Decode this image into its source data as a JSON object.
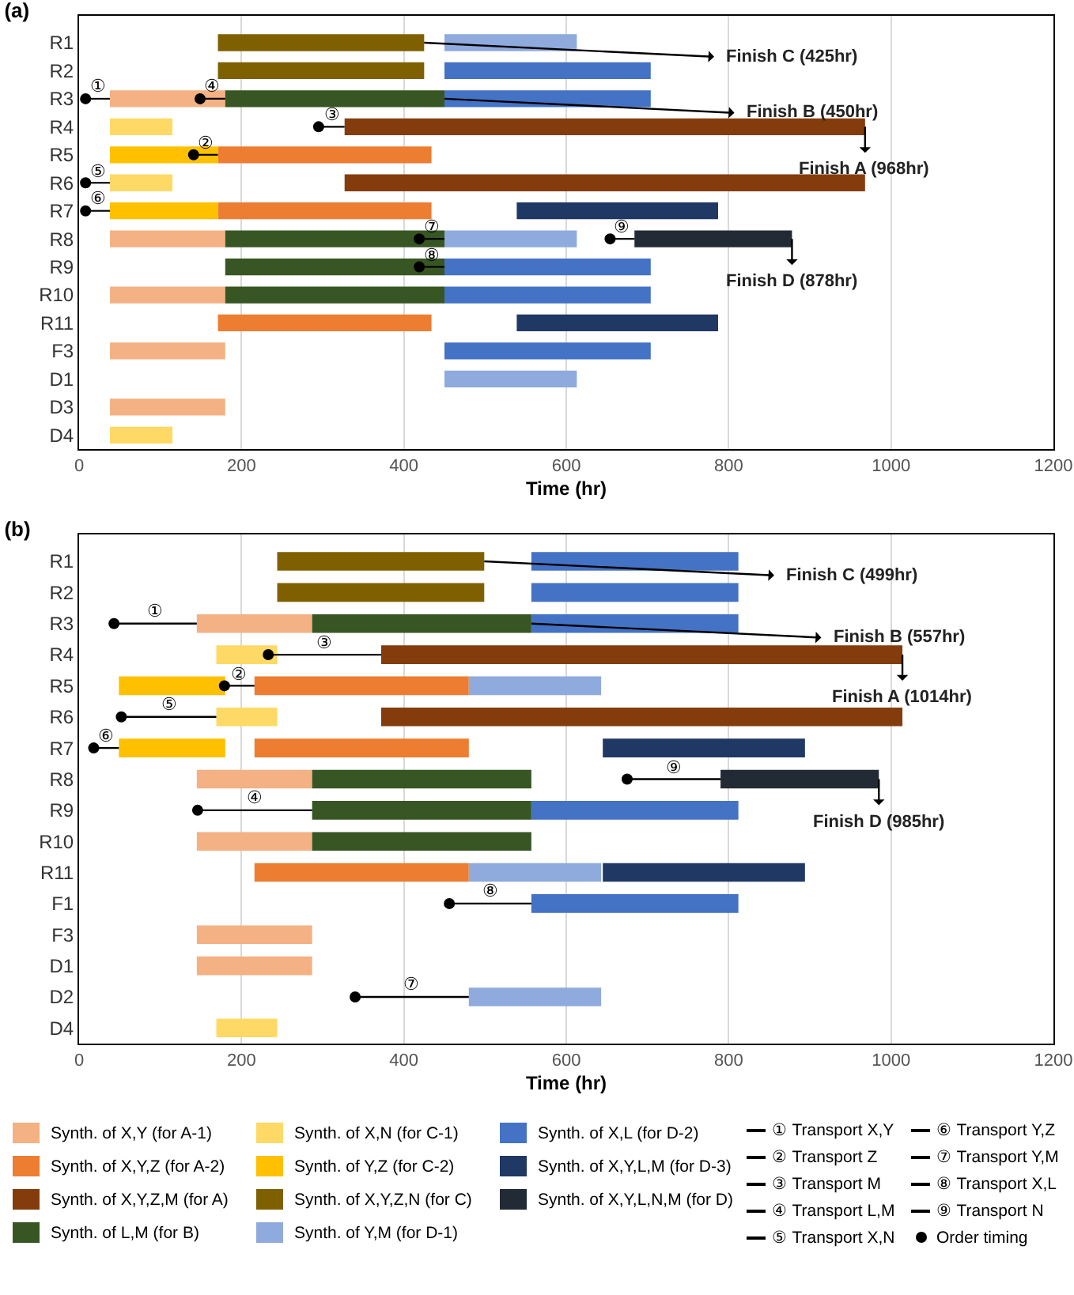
{
  "chart_data": [
    {
      "type": "bar",
      "title": "(a)",
      "orientation": "horizontal",
      "xlabel": "Time (hr)",
      "xlim": [
        0,
        1200
      ],
      "xticks": [
        0,
        200,
        400,
        600,
        800,
        1000,
        1200
      ],
      "grid": "x",
      "categories": [
        "R1",
        "R2",
        "R3",
        "R4",
        "R5",
        "R6",
        "R7",
        "R8",
        "R9",
        "R10",
        "R11",
        "F3",
        "D1",
        "D3",
        "D4"
      ],
      "series": [
        {
          "color": "#f4b183",
          "values": [
            null,
            null,
            142,
            null,
            null,
            null,
            null,
            142,
            null,
            142,
            null,
            142,
            null,
            142,
            null
          ],
          "base": [
            null,
            null,
            38,
            null,
            null,
            null,
            null,
            38,
            null,
            38,
            null,
            38,
            null,
            38,
            null
          ]
        },
        {
          "color": "#ed7d31",
          "values": [
            null,
            null,
            null,
            null,
            263,
            null,
            263,
            null,
            null,
            null,
            263,
            null,
            null,
            null,
            null
          ],
          "base": [
            null,
            null,
            null,
            null,
            171,
            null,
            171,
            null,
            null,
            null,
            171,
            null,
            null,
            null,
            null
          ]
        },
        {
          "color": "#843c0c",
          "values": [
            null,
            null,
            null,
            641,
            null,
            641,
            null,
            null,
            null,
            null,
            null,
            null,
            null,
            null,
            null
          ],
          "base": [
            null,
            null,
            null,
            327,
            null,
            327,
            null,
            null,
            null,
            null,
            null,
            null,
            null,
            null,
            null
          ]
        },
        {
          "color": "#375623",
          "values": [
            null,
            null,
            270,
            null,
            null,
            null,
            null,
            270,
            270,
            270,
            null,
            null,
            null,
            null,
            null
          ],
          "base": [
            null,
            null,
            180,
            null,
            null,
            null,
            null,
            180,
            180,
            180,
            null,
            null,
            null,
            null,
            null
          ]
        },
        {
          "color": "#ffd966",
          "values": [
            null,
            null,
            null,
            77,
            null,
            77,
            null,
            null,
            null,
            null,
            null,
            null,
            null,
            null,
            77
          ],
          "base": [
            null,
            null,
            null,
            38,
            null,
            38,
            null,
            null,
            null,
            null,
            null,
            null,
            null,
            null,
            38
          ]
        },
        {
          "color": "#ffc000",
          "values": [
            null,
            null,
            null,
            null,
            133,
            null,
            133,
            null,
            null,
            null,
            null,
            null,
            null,
            null,
            null
          ],
          "base": [
            null,
            null,
            null,
            null,
            38,
            null,
            38,
            null,
            null,
            null,
            null,
            null,
            null,
            null,
            null
          ]
        },
        {
          "color": "#7f6000",
          "values": [
            254,
            254,
            null,
            null,
            null,
            null,
            null,
            null,
            null,
            null,
            null,
            null,
            null,
            null,
            null
          ],
          "base": [
            171,
            171,
            null,
            null,
            null,
            null,
            null,
            null,
            null,
            null,
            null,
            null,
            null,
            null,
            null
          ]
        },
        {
          "color": "#8faadc",
          "values": [
            163,
            null,
            null,
            null,
            null,
            null,
            null,
            163,
            null,
            null,
            null,
            null,
            163,
            null,
            null
          ],
          "base": [
            450,
            null,
            null,
            null,
            null,
            null,
            null,
            450,
            null,
            null,
            null,
            null,
            450,
            null,
            null
          ]
        },
        {
          "color": "#4472c4",
          "values": [
            null,
            254,
            254,
            null,
            null,
            null,
            null,
            null,
            254,
            254,
            null,
            254,
            null,
            null,
            null
          ],
          "base": [
            null,
            450,
            450,
            null,
            null,
            null,
            null,
            null,
            450,
            450,
            null,
            450,
            null,
            null,
            null
          ]
        },
        {
          "color": "#1f3864",
          "values": [
            null,
            null,
            null,
            null,
            null,
            null,
            248,
            null,
            null,
            null,
            248,
            null,
            null,
            null,
            null
          ],
          "base": [
            null,
            null,
            null,
            null,
            null,
            null,
            539,
            null,
            null,
            null,
            539,
            null,
            null,
            null,
            null
          ]
        },
        {
          "color": "#222a35",
          "values": [
            null,
            null,
            null,
            null,
            null,
            null,
            null,
            194,
            null,
            null,
            null,
            null,
            null,
            null,
            null
          ],
          "base": [
            null,
            null,
            null,
            null,
            null,
            null,
            null,
            684,
            null,
            null,
            null,
            null,
            null,
            null,
            null
          ]
        },
        {
          "color": "#000000",
          "values": [
            null,
            null,
            30,
            null,
            null,
            null,
            null,
            null,
            null,
            null,
            null,
            null,
            null,
            null,
            null
          ],
          "base": [
            null,
            null,
            8,
            null,
            null,
            null,
            null,
            null,
            null,
            null,
            null,
            null,
            null,
            null,
            null
          ],
          "value_labels": [
            null,
            null,
            "①",
            null,
            null,
            null,
            null,
            null,
            null,
            null,
            null,
            null,
            null,
            null,
            null
          ]
        },
        {
          "color": "#000000",
          "values": [
            null,
            null,
            null,
            null,
            30,
            null,
            null,
            null,
            null,
            null,
            null,
            null,
            null,
            null,
            null
          ],
          "base": [
            null,
            null,
            null,
            null,
            141,
            null,
            null,
            null,
            null,
            null,
            null,
            null,
            null,
            null,
            null
          ],
          "value_labels": [
            null,
            null,
            null,
            null,
            "②",
            null,
            null,
            null,
            null,
            null,
            null,
            null,
            null,
            null,
            null
          ]
        },
        {
          "color": "#000000",
          "values": [
            null,
            null,
            null,
            32,
            null,
            null,
            null,
            null,
            null,
            null,
            null,
            null,
            null,
            null,
            null
          ],
          "base": [
            null,
            null,
            null,
            295,
            null,
            null,
            null,
            null,
            null,
            null,
            null,
            null,
            null,
            null,
            null
          ],
          "value_labels": [
            null,
            null,
            null,
            "③",
            null,
            null,
            null,
            null,
            null,
            null,
            null,
            null,
            null,
            null,
            null
          ]
        },
        {
          "color": "#000000",
          "values": [
            null,
            null,
            31,
            null,
            null,
            null,
            null,
            null,
            null,
            null,
            null,
            null,
            null,
            null,
            null
          ],
          "base": [
            null,
            null,
            149,
            null,
            null,
            null,
            null,
            null,
            null,
            null,
            null,
            null,
            null,
            null,
            null
          ],
          "value_labels": [
            null,
            null,
            "④",
            null,
            null,
            null,
            null,
            null,
            null,
            null,
            null,
            null,
            null,
            null,
            null
          ]
        },
        {
          "color": "#000000",
          "values": [
            null,
            null,
            null,
            null,
            null,
            30,
            null,
            null,
            null,
            null,
            null,
            null,
            null,
            null,
            null
          ],
          "base": [
            null,
            null,
            null,
            null,
            null,
            8,
            null,
            null,
            null,
            null,
            null,
            null,
            null,
            null,
            null
          ],
          "value_labels": [
            null,
            null,
            null,
            null,
            null,
            "⑤",
            null,
            null,
            null,
            null,
            null,
            null,
            null,
            null,
            null
          ]
        },
        {
          "color": "#000000",
          "values": [
            null,
            null,
            null,
            null,
            null,
            null,
            30,
            null,
            null,
            null,
            null,
            null,
            null,
            null,
            null
          ],
          "base": [
            null,
            null,
            null,
            null,
            null,
            null,
            8,
            null,
            null,
            null,
            null,
            null,
            null,
            null,
            null
          ],
          "value_labels": [
            null,
            null,
            null,
            null,
            null,
            null,
            "⑥",
            null,
            null,
            null,
            null,
            null,
            null,
            null,
            null
          ]
        },
        {
          "color": "#000000",
          "values": [
            null,
            null,
            null,
            null,
            null,
            null,
            null,
            31,
            null,
            null,
            null,
            null,
            null,
            null,
            null
          ],
          "base": [
            null,
            null,
            null,
            null,
            null,
            null,
            null,
            419,
            null,
            null,
            null,
            null,
            null,
            null,
            null
          ],
          "value_labels": [
            null,
            null,
            null,
            null,
            null,
            null,
            null,
            "⑦",
            null,
            null,
            null,
            null,
            null,
            null,
            null
          ]
        },
        {
          "color": "#000000",
          "values": [
            null,
            null,
            null,
            null,
            null,
            null,
            null,
            null,
            31,
            null,
            null,
            null,
            null,
            null,
            null
          ],
          "base": [
            null,
            null,
            null,
            null,
            null,
            null,
            null,
            null,
            419,
            null,
            null,
            null,
            null,
            null,
            null
          ],
          "value_labels": [
            null,
            null,
            null,
            null,
            null,
            null,
            null,
            null,
            "⑧",
            null,
            null,
            null,
            null,
            null,
            null
          ]
        },
        {
          "color": "#000000",
          "values": [
            null,
            null,
            null,
            null,
            null,
            null,
            null,
            30,
            null,
            null,
            null,
            null,
            null,
            null,
            null
          ],
          "base": [
            null,
            null,
            null,
            null,
            null,
            null,
            null,
            654,
            null,
            null,
            null,
            null,
            null,
            null,
            null
          ],
          "value_labels": [
            null,
            null,
            null,
            null,
            null,
            null,
            null,
            "⑨",
            null,
            null,
            null,
            null,
            null,
            null,
            null
          ]
        },
        {
          "color": "#000000",
          "type": "scatter",
          "marker": "circle",
          "x": [
            "R3",
            "R3",
            "R4",
            "R5",
            "R6",
            "R7",
            "R8",
            "R8",
            "R9"
          ],
          "values": [
            8,
            149,
            295,
            141,
            8,
            8,
            419,
            654,
            419
          ]
        }
      ],
      "annotations": [
        {
          "text": "Finish C (425hr)",
          "x": 425,
          "y": "R1"
        },
        {
          "text": "Finish B (450hr)",
          "x": 450,
          "y": "R3"
        },
        {
          "text": "Finish A (968hr)",
          "x": 968,
          "y": "R4"
        },
        {
          "text": "Finish D (878hr)",
          "x": 878,
          "y": "R8"
        }
      ]
    },
    {
      "type": "bar",
      "title": "(b)",
      "orientation": "horizontal",
      "xlabel": "Time (hr)",
      "xlim": [
        0,
        1200
      ],
      "xticks": [
        0,
        200,
        400,
        600,
        800,
        1000,
        1200
      ],
      "grid": "x",
      "legend": "bottom",
      "categories": [
        "R1",
        "R2",
        "R3",
        "R4",
        "R5",
        "R6",
        "R7",
        "R8",
        "R9",
        "R10",
        "R11",
        "F1",
        "F3",
        "D1",
        "D2",
        "D4"
      ],
      "series": [
        {
          "name": "Synth. of X,Y (for A-1)",
          "color": "#f4b183",
          "values": [
            null,
            null,
            142,
            null,
            null,
            null,
            null,
            142,
            null,
            142,
            null,
            null,
            142,
            142,
            null,
            null
          ],
          "base": [
            null,
            null,
            145,
            null,
            null,
            null,
            null,
            145,
            null,
            145,
            null,
            null,
            145,
            145,
            null,
            null
          ]
        },
        {
          "name": "Synth. of X,Y,Z (for A-2)",
          "color": "#ed7d31",
          "values": [
            null,
            null,
            null,
            null,
            264,
            null,
            264,
            null,
            null,
            null,
            264,
            null,
            null,
            null,
            null,
            null
          ],
          "base": [
            null,
            null,
            null,
            null,
            216,
            null,
            216,
            null,
            null,
            null,
            216,
            null,
            null,
            null,
            null,
            null
          ]
        },
        {
          "name": "Synth. of X,Y,Z,M (for A)",
          "color": "#843c0c",
          "values": [
            null,
            null,
            null,
            642,
            null,
            642,
            null,
            null,
            null,
            null,
            null,
            null,
            null,
            null,
            null,
            null
          ],
          "base": [
            null,
            null,
            null,
            372,
            null,
            372,
            null,
            null,
            null,
            null,
            null,
            null,
            null,
            null,
            null,
            null
          ]
        },
        {
          "name": "Synth. of L,M (for B)",
          "color": "#375623",
          "values": [
            null,
            null,
            270,
            null,
            null,
            null,
            null,
            270,
            270,
            270,
            null,
            null,
            null,
            null,
            null,
            null
          ],
          "base": [
            null,
            null,
            287,
            null,
            null,
            null,
            null,
            287,
            287,
            287,
            null,
            null,
            null,
            null,
            null,
            null
          ]
        },
        {
          "name": "Synth. of X,N (for C-1)",
          "color": "#ffd966",
          "values": [
            null,
            null,
            null,
            75,
            null,
            75,
            null,
            null,
            null,
            null,
            null,
            null,
            null,
            null,
            null,
            75
          ],
          "base": [
            null,
            null,
            null,
            169,
            null,
            169,
            null,
            null,
            null,
            null,
            null,
            null,
            null,
            null,
            null,
            169
          ]
        },
        {
          "name": "Synth. of Y,Z (for C-2)",
          "color": "#ffc000",
          "values": [
            null,
            null,
            null,
            null,
            131,
            null,
            131,
            null,
            null,
            null,
            null,
            null,
            null,
            null,
            null,
            null
          ],
          "base": [
            null,
            null,
            null,
            null,
            49,
            null,
            49,
            null,
            null,
            null,
            null,
            null,
            null,
            null,
            null,
            null
          ]
        },
        {
          "name": "Synth. of X,Y,Z,N (for C)",
          "color": "#7f6000",
          "values": [
            255,
            255,
            null,
            null,
            null,
            null,
            null,
            null,
            null,
            null,
            null,
            null,
            null,
            null,
            null,
            null
          ],
          "base": [
            244,
            244,
            null,
            null,
            null,
            null,
            null,
            null,
            null,
            null,
            null,
            null,
            null,
            null,
            null,
            null
          ]
        },
        {
          "name": "Synth. of Y,M (for D-1)",
          "color": "#8faadc",
          "values": [
            null,
            null,
            null,
            null,
            163,
            null,
            null,
            null,
            null,
            null,
            163,
            null,
            null,
            null,
            163,
            null
          ],
          "base": [
            null,
            null,
            null,
            null,
            480,
            null,
            null,
            null,
            null,
            null,
            480,
            null,
            null,
            null,
            480,
            null
          ]
        },
        {
          "name": "Synth. of X,L (for D-2)",
          "color": "#4472c4",
          "values": [
            255,
            255,
            255,
            null,
            null,
            null,
            null,
            null,
            255,
            null,
            null,
            255,
            null,
            null,
            null,
            null
          ],
          "base": [
            557,
            557,
            557,
            null,
            null,
            null,
            null,
            null,
            557,
            null,
            null,
            557,
            null,
            null,
            null,
            null
          ]
        },
        {
          "name": "Synth. of X,Y,L,M (for D-3)",
          "color": "#1f3864",
          "values": [
            null,
            null,
            null,
            null,
            null,
            null,
            249,
            null,
            null,
            null,
            249,
            null,
            null,
            null,
            null,
            null
          ],
          "base": [
            null,
            null,
            null,
            null,
            null,
            null,
            645,
            null,
            null,
            null,
            645,
            null,
            null,
            null,
            null,
            null
          ]
        },
        {
          "name": "Synth. of X,Y,L,N,M (for D)",
          "color": "#222a35",
          "values": [
            null,
            null,
            null,
            null,
            null,
            null,
            null,
            195,
            null,
            null,
            null,
            null,
            null,
            null,
            null,
            null
          ],
          "base": [
            null,
            null,
            null,
            null,
            null,
            null,
            null,
            790,
            null,
            null,
            null,
            null,
            null,
            null,
            null,
            null
          ]
        },
        {
          "name": "① Transport X,Y",
          "color": "#000000",
          "values": [
            null,
            null,
            102,
            null,
            null,
            null,
            null,
            null,
            null,
            null,
            null,
            null,
            null,
            null,
            null,
            null
          ],
          "base": [
            null,
            null,
            43,
            null,
            null,
            null,
            null,
            null,
            null,
            null,
            null,
            null,
            null,
            null,
            null,
            null
          ],
          "value_labels": [
            null,
            null,
            "①",
            null,
            null,
            null,
            null,
            null,
            null,
            null,
            null,
            null,
            null,
            null,
            null,
            null
          ]
        },
        {
          "name": "② Transport Z",
          "color": "#000000",
          "values": [
            null,
            null,
            null,
            null,
            37,
            null,
            null,
            null,
            null,
            null,
            null,
            null,
            null,
            null,
            null,
            null
          ],
          "base": [
            null,
            null,
            null,
            null,
            179,
            null,
            null,
            null,
            null,
            null,
            null,
            null,
            null,
            null,
            null,
            null
          ],
          "value_labels": [
            null,
            null,
            null,
            null,
            "②",
            null,
            null,
            null,
            null,
            null,
            null,
            null,
            null,
            null,
            null,
            null
          ]
        },
        {
          "name": "③ Transport M",
          "color": "#000000",
          "values": [
            null,
            null,
            null,
            139,
            null,
            null,
            null,
            null,
            null,
            null,
            null,
            null,
            null,
            null,
            null,
            null
          ],
          "base": [
            null,
            null,
            null,
            233,
            null,
            null,
            null,
            null,
            null,
            null,
            null,
            null,
            null,
            null,
            null,
            null
          ],
          "value_labels": [
            null,
            null,
            null,
            "③",
            null,
            null,
            null,
            null,
            null,
            null,
            null,
            null,
            null,
            null,
            null,
            null
          ]
        },
        {
          "name": "④ Transport L,M",
          "color": "#000000",
          "values": [
            null,
            null,
            null,
            null,
            null,
            null,
            null,
            null,
            141,
            null,
            null,
            null,
            null,
            null,
            null,
            null
          ],
          "base": [
            null,
            null,
            null,
            null,
            null,
            null,
            null,
            null,
            146,
            null,
            null,
            null,
            null,
            null,
            null,
            null
          ],
          "value_labels": [
            null,
            null,
            null,
            null,
            null,
            null,
            null,
            null,
            "④",
            null,
            null,
            null,
            null,
            null,
            null,
            null
          ]
        },
        {
          "name": "⑤ Transport X,N",
          "color": "#000000",
          "values": [
            null,
            null,
            null,
            null,
            null,
            117,
            null,
            null,
            null,
            null,
            null,
            null,
            null,
            null,
            null,
            null
          ],
          "base": [
            null,
            null,
            null,
            null,
            null,
            52,
            null,
            null,
            null,
            null,
            null,
            null,
            null,
            null,
            null,
            null
          ],
          "value_labels": [
            null,
            null,
            null,
            null,
            null,
            "⑤",
            null,
            null,
            null,
            null,
            null,
            null,
            null,
            null,
            null,
            null
          ]
        },
        {
          "name": "⑥ Transport Y,Z",
          "color": "#000000",
          "values": [
            null,
            null,
            null,
            null,
            null,
            null,
            31,
            null,
            null,
            null,
            null,
            null,
            null,
            null,
            null,
            null
          ],
          "base": [
            null,
            null,
            null,
            null,
            null,
            null,
            18,
            null,
            null,
            null,
            null,
            null,
            null,
            null,
            null,
            null
          ],
          "value_labels": [
            null,
            null,
            null,
            null,
            null,
            null,
            "⑥",
            null,
            null,
            null,
            null,
            null,
            null,
            null,
            null,
            null
          ]
        },
        {
          "name": "⑦ Transport Y,M",
          "color": "#000000",
          "values": [
            null,
            null,
            null,
            null,
            null,
            null,
            null,
            null,
            null,
            null,
            null,
            null,
            null,
            null,
            140,
            null
          ],
          "base": [
            null,
            null,
            null,
            null,
            null,
            null,
            null,
            null,
            null,
            null,
            null,
            null,
            null,
            null,
            340,
            null
          ],
          "value_labels": [
            null,
            null,
            null,
            null,
            null,
            null,
            null,
            null,
            null,
            null,
            null,
            null,
            null,
            null,
            "⑦",
            null
          ]
        },
        {
          "name": "⑧ Transport X,L",
          "color": "#000000",
          "values": [
            null,
            null,
            null,
            null,
            null,
            null,
            null,
            null,
            null,
            null,
            null,
            101,
            null,
            null,
            null,
            null
          ],
          "base": [
            null,
            null,
            null,
            null,
            null,
            null,
            null,
            null,
            null,
            null,
            null,
            456,
            null,
            null,
            null,
            null
          ],
          "value_labels": [
            null,
            null,
            null,
            null,
            null,
            null,
            null,
            null,
            null,
            null,
            null,
            "⑧",
            null,
            null,
            null,
            null
          ]
        },
        {
          "name": "⑨ Transport N",
          "color": "#000000",
          "values": [
            null,
            null,
            null,
            null,
            null,
            null,
            null,
            115,
            null,
            null,
            null,
            null,
            null,
            null,
            null,
            null
          ],
          "base": [
            null,
            null,
            null,
            null,
            null,
            null,
            null,
            675,
            null,
            null,
            null,
            null,
            null,
            null,
            null,
            null
          ],
          "value_labels": [
            null,
            null,
            null,
            null,
            null,
            null,
            null,
            "⑨",
            null,
            null,
            null,
            null,
            null,
            null,
            null,
            null
          ]
        },
        {
          "name": "Order timing",
          "color": "#000000",
          "type": "scatter",
          "marker": "circle",
          "x": [
            "R3",
            "R4",
            "R5",
            "R6",
            "R7",
            "R8",
            "R9",
            "F1",
            "D2"
          ],
          "values": [
            43,
            233,
            179,
            52,
            18,
            675,
            146,
            456,
            340
          ]
        }
      ],
      "annotations": [
        {
          "text": "Finish C (499hr)",
          "x": 499,
          "y": "R1"
        },
        {
          "text": "Finish B (557hr)",
          "x": 557,
          "y": "R3"
        },
        {
          "text": "Finish A (1014hr)",
          "x": 1014,
          "y": "R4"
        },
        {
          "text": "Finish D (985hr)",
          "x": 985,
          "y": "R8"
        }
      ]
    }
  ]
}
